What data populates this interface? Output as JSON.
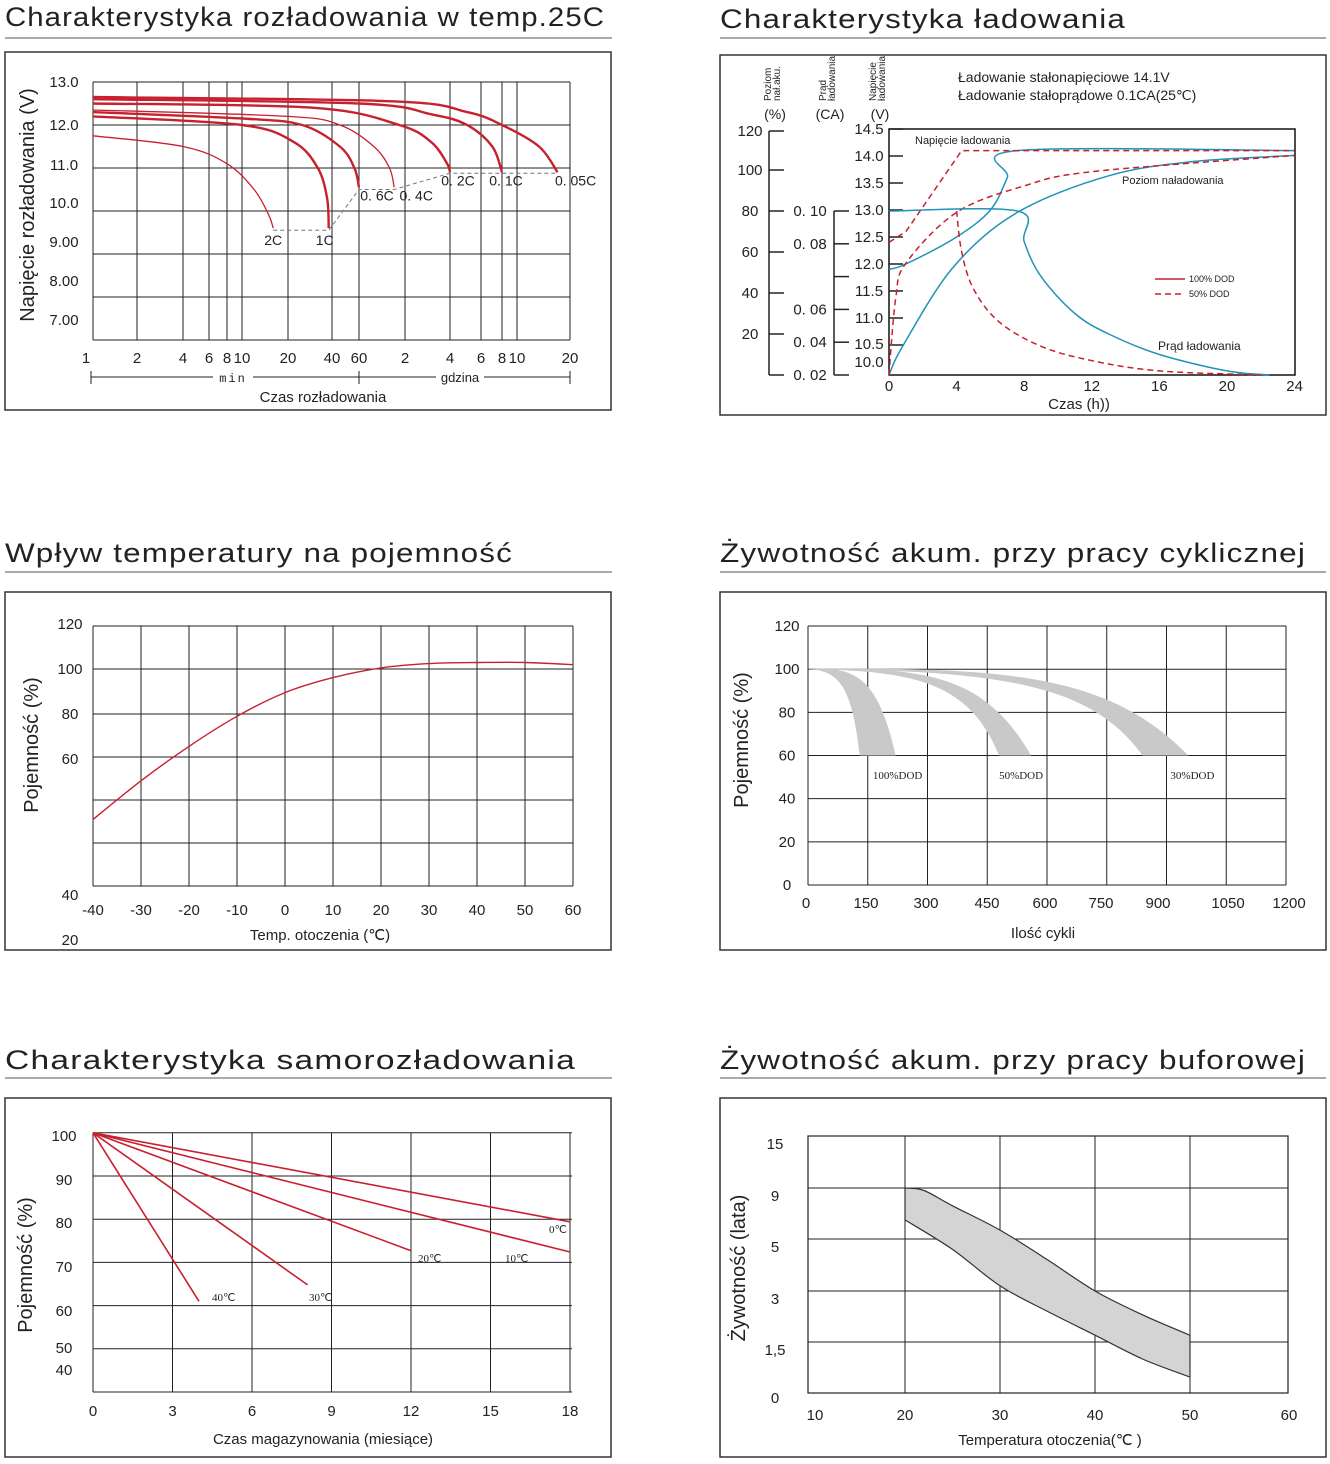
{
  "colors": {
    "red": "#c8202e",
    "blue": "#1f93b8",
    "band": "#c9c9c9",
    "grid": "#222222"
  },
  "chart_data": [
    {
      "id": "discharge",
      "type": "line",
      "title": "Charakterystyka rozładowania w temp.25C",
      "ylabel": "Napięcie rozładowania (V)",
      "xlabel": "Czas rozładowania",
      "x_scale": "log",
      "x_unit_min": "min",
      "x_unit_hours": "gdzina",
      "ylim": [
        7,
        13
      ],
      "y_ticks": [
        "13.0",
        "12.0",
        "11.0",
        "10.0",
        "9.00",
        "8.00",
        "7.00"
      ],
      "x_ticks": [
        {
          "minutes": 1,
          "label": "1"
        },
        {
          "minutes": 2,
          "label": "2"
        },
        {
          "minutes": 4,
          "label": "4"
        },
        {
          "minutes": 6,
          "label": "6"
        },
        {
          "minutes": 8,
          "label": "8"
        },
        {
          "minutes": 10,
          "label": "10"
        },
        {
          "minutes": 20,
          "label": "20"
        },
        {
          "minutes": 40,
          "label": "40"
        },
        {
          "minutes": 60,
          "label": "60"
        },
        {
          "minutes": 120,
          "label": "2"
        },
        {
          "minutes": 240,
          "label": "4"
        },
        {
          "minutes": 360,
          "label": "6"
        },
        {
          "minutes": 480,
          "label": "8"
        },
        {
          "minutes": 600,
          "label": "10"
        },
        {
          "minutes": 1200,
          "label": "20"
        }
      ],
      "series": [
        {
          "name": "2C",
          "label": "2C",
          "points": [
            [
              1,
              11.75
            ],
            [
              4,
              11.5
            ],
            [
              8,
              11.1
            ],
            [
              12,
              10.5
            ],
            [
              15,
              9.9
            ],
            [
              16,
              9.6
            ]
          ]
        },
        {
          "name": "1C",
          "label": "1C",
          "points": [
            [
              1,
              12.2
            ],
            [
              10,
              12.0
            ],
            [
              22,
              11.6
            ],
            [
              32,
              11.0
            ],
            [
              37,
              10.3
            ],
            [
              38,
              9.6
            ]
          ]
        },
        {
          "name": "0.6C",
          "label": "0. 6C",
          "points": [
            [
              1,
              12.3
            ],
            [
              10,
              12.15
            ],
            [
              25,
              12.0
            ],
            [
              45,
              11.5
            ],
            [
              56,
              11.0
            ],
            [
              60,
              10.55
            ]
          ]
        },
        {
          "name": "0.4C",
          "label": "0. 4C",
          "points": [
            [
              1,
              12.35
            ],
            [
              20,
              12.2
            ],
            [
              45,
              12.0
            ],
            [
              75,
              11.5
            ],
            [
              95,
              11.0
            ],
            [
              102,
              10.55
            ]
          ]
        },
        {
          "name": "0.2C",
          "label": "0. 2C",
          "points": [
            [
              1,
              12.5
            ],
            [
              30,
              12.4
            ],
            [
              110,
              12.0
            ],
            [
              180,
              11.6
            ],
            [
              230,
              11.1
            ],
            [
              240,
              10.9
            ]
          ]
        },
        {
          "name": "0.1C",
          "label": "0. 1C",
          "points": [
            [
              1,
              12.6
            ],
            [
              60,
              12.5
            ],
            [
              180,
              12.25
            ],
            [
              300,
              12.0
            ],
            [
              420,
              11.5
            ],
            [
              480,
              10.9
            ]
          ]
        },
        {
          "name": "0.05C",
          "label": "0. 05C",
          "points": [
            [
              1,
              12.65
            ],
            [
              100,
              12.55
            ],
            [
              300,
              12.3
            ],
            [
              480,
              12.0
            ],
            [
              800,
              11.5
            ],
            [
              1020,
              10.9
            ]
          ]
        }
      ],
      "cutoff_line": [
        [
          16,
          9.55
        ],
        [
          38,
          9.55
        ],
        [
          60,
          10.5
        ],
        [
          102,
          10.5
        ],
        [
          240,
          10.88
        ],
        [
          1020,
          10.88
        ]
      ]
    },
    {
      "id": "charging",
      "type": "line",
      "title": "Charakterystyka ładowania",
      "xlabel": "Czas (h))",
      "xlim": [
        0,
        24
      ],
      "x_ticks": [
        "0",
        "4",
        "8",
        "12",
        "16",
        "20",
        "24"
      ],
      "note_1": "Ładowanie stałonapięciowe 14.1V",
      "note_2": "Ładowanie stałoprądowe 0.1CA(25℃)",
      "axis_level": {
        "line1": "Poziom",
        "line2": "nał.aku.",
        "unit": "(%)",
        "ticks": [
          "120",
          "100",
          "80",
          "60",
          "40",
          "20"
        ]
      },
      "axis_current": {
        "line1": "Prąd",
        "line2": "ładowania",
        "unit": "(CA)",
        "ticks": [
          "0. 10",
          "0. 08",
          "",
          "0. 06",
          "0. 04",
          "0. 02"
        ]
      },
      "axis_voltage": {
        "line1": "Napięcie",
        "line2": "ładowania",
        "unit": "(V)",
        "ticks": [
          "14.5",
          "14.0",
          "13.5",
          "13.0",
          "12.5",
          "12.0",
          "11.5",
          "11.0",
          "10.5",
          "10.0"
        ]
      },
      "annotations": {
        "voltage": "Napięcie ładowania",
        "level": "Poziom naładowania",
        "current": "Prąd ładowania"
      },
      "legend": [
        {
          "name": "100% DOD",
          "style": "solid"
        },
        {
          "name": "50% DOD",
          "style": "dashed"
        }
      ],
      "legend_placement": "right",
      "series": [
        {
          "name": "voltage-100",
          "axis": "V",
          "style": "solid",
          "points": [
            [
              0,
              11.9
            ],
            [
              1,
              12.0
            ],
            [
              4,
              12.5
            ],
            [
              6,
              13.0
            ],
            [
              7,
              13.6
            ],
            [
              7.6,
              14.1
            ],
            [
              24,
              14.1
            ]
          ]
        },
        {
          "name": "voltage-50",
          "axis": "V",
          "style": "dashed",
          "points": [
            [
              0,
              12.4
            ],
            [
              1,
              12.6
            ],
            [
              4.3,
              14.1
            ],
            [
              24,
              14.1
            ]
          ]
        },
        {
          "name": "level-100",
          "axis": "%",
          "style": "solid",
          "points": [
            [
              0,
              0
            ],
            [
              0.8,
              14
            ],
            [
              3.8,
              53
            ],
            [
              7.6,
              80
            ],
            [
              13,
              98
            ],
            [
              18,
              105
            ],
            [
              24,
              108
            ]
          ]
        },
        {
          "name": "level-50",
          "axis": "%",
          "style": "dashed",
          "points": [
            [
              0,
              0
            ],
            [
              0.4,
              38
            ],
            [
              1,
              55
            ],
            [
              4,
              80
            ],
            [
              8,
              93
            ],
            [
              12,
              100
            ],
            [
              24,
              108
            ]
          ]
        },
        {
          "name": "current-100",
          "axis": "CA",
          "style": "solid",
          "points": [
            [
              0,
              0.1
            ],
            [
              7.6,
              0.1
            ],
            [
              8,
              0.085
            ],
            [
              9,
              0.068
            ],
            [
              11,
              0.05
            ],
            [
              13,
              0.04
            ],
            [
              16,
              0.03
            ],
            [
              20,
              0.022
            ],
            [
              22.5,
              0.02
            ]
          ]
        },
        {
          "name": "current-50",
          "axis": "CA",
          "style": "dashed",
          "points": [
            [
              4,
              0.1
            ],
            [
              4.3,
              0.08
            ],
            [
              5,
              0.062
            ],
            [
              6.5,
              0.046
            ],
            [
              9,
              0.034
            ],
            [
              12,
              0.027
            ],
            [
              16,
              0.022
            ],
            [
              22,
              0.02
            ]
          ]
        }
      ]
    },
    {
      "id": "temperature-capacity",
      "type": "line",
      "title": "Wpływ temperatury na pojemność",
      "ylabel": "Pojemność (%)",
      "xlabel": "Temp. otoczenia (℃)",
      "xlim": [
        -40,
        60
      ],
      "x_ticks": [
        "-40",
        "-30",
        "-20",
        "-10",
        "0",
        "10",
        "20",
        "30",
        "40",
        "50",
        "60"
      ],
      "y_ticks": [
        "120",
        "100",
        "80",
        "60",
        "40",
        "20"
      ],
      "series": [
        {
          "name": "capacity",
          "points": [
            [
              -40,
              30
            ],
            [
              -30,
              48
            ],
            [
              -20,
              64
            ],
            [
              -10,
              78
            ],
            [
              0,
              89
            ],
            [
              10,
              96
            ],
            [
              20,
              100.5
            ],
            [
              30,
              102.5
            ],
            [
              40,
              103
            ],
            [
              50,
              103
            ],
            [
              60,
              102
            ]
          ]
        }
      ]
    },
    {
      "id": "cycle-life",
      "type": "area",
      "title": "Żywotność akum. przy pracy cyklicznej",
      "ylabel": "Pojemność (%)",
      "xlabel": "Ilość cykli",
      "xlim": [
        0,
        1200
      ],
      "ylim": [
        0,
        120
      ],
      "x_ticks": [
        "0",
        "150",
        "300",
        "450",
        "600",
        "750",
        "900",
        "1050",
        "1200"
      ],
      "y_ticks": [
        "120",
        "100",
        "80",
        "60",
        "40",
        "20",
        "0"
      ],
      "bands": [
        {
          "name": "100%DOD",
          "label": "100%DOD",
          "end_cycles": [
            130,
            220
          ],
          "end_capacity": 60
        },
        {
          "name": "50%DOD",
          "label": "50%DOD",
          "end_cycles": [
            480,
            560
          ],
          "end_capacity": 60
        },
        {
          "name": "30%DOD",
          "label": "30%DOD",
          "end_cycles": [
            840,
            955
          ],
          "end_capacity": 60
        }
      ]
    },
    {
      "id": "self-discharge",
      "type": "line",
      "title": "Charakterystyka samorozładowania",
      "ylabel": "Pojemność (%)",
      "xlabel": "Czas magazynowania (miesiące)",
      "xlim": [
        0,
        18
      ],
      "ylim": [
        40,
        100
      ],
      "x_ticks": [
        "0",
        "3",
        "6",
        "9",
        "12",
        "15",
        "18"
      ],
      "y_ticks": [
        "100",
        "90",
        "80",
        "70",
        "60",
        "50",
        "40"
      ],
      "series": [
        {
          "name": "40℃",
          "label": "40℃",
          "points": [
            [
              0,
              100
            ],
            [
              4,
              61
            ]
          ]
        },
        {
          "name": "30℃",
          "label": "30℃",
          "points": [
            [
              0,
              100
            ],
            [
              8.1,
              64.8
            ]
          ]
        },
        {
          "name": "20℃",
          "label": "20℃",
          "points": [
            [
              0,
              100
            ],
            [
              12,
              72.7
            ]
          ]
        },
        {
          "name": "10℃",
          "label": "10℃",
          "points": [
            [
              0,
              100
            ],
            [
              18,
              72.4
            ]
          ]
        },
        {
          "name": "0℃",
          "label": "0℃",
          "points": [
            [
              0,
              100
            ],
            [
              18,
              79.4
            ]
          ]
        }
      ]
    },
    {
      "id": "float-life",
      "type": "area",
      "title": "Żywotność akum. przy pracy buforowej",
      "ylabel": "Żywotność (lata)",
      "xlabel": "Temperatura otoczenia(℃ )",
      "xlim": [
        10,
        60
      ],
      "x_ticks": [
        "10",
        "20",
        "30",
        "40",
        "50",
        "60"
      ],
      "y_tick_values": [
        15,
        9,
        5,
        3,
        1.5,
        0
      ],
      "y_ticks": [
        "15",
        "9",
        "5",
        "3",
        "1,5",
        "0"
      ],
      "band_upper": [
        [
          20,
          9
        ],
        [
          22,
          8.8
        ],
        [
          25,
          7.6
        ],
        [
          30,
          5.7
        ],
        [
          35,
          4.2
        ],
        [
          40,
          3.0
        ],
        [
          45,
          2.3
        ],
        [
          50,
          1.7
        ]
      ],
      "band_lower": [
        [
          20,
          6.5
        ],
        [
          25,
          4.6
        ],
        [
          30,
          3.2
        ],
        [
          35,
          2.4
        ],
        [
          40,
          1.7
        ],
        [
          45,
          1.0
        ],
        [
          50,
          0.47
        ]
      ]
    }
  ]
}
